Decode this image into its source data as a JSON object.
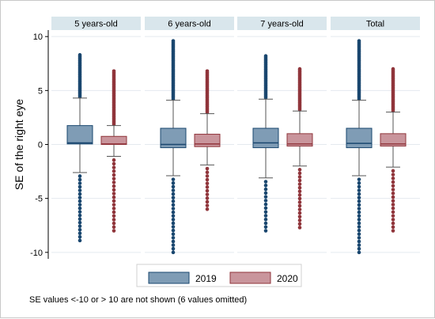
{
  "chart_data": {
    "type": "boxplot",
    "ylabel": "SE of the right eye",
    "ylim": [
      -10.6,
      10.6
    ],
    "yticks": [
      -10,
      -5,
      0,
      5,
      10
    ],
    "ytick_labels": [
      "-10",
      "-5",
      "0",
      "5",
      "10"
    ],
    "panels": [
      {
        "title": "5 years-old",
        "boxes": [
          {
            "series": "2019",
            "whisker_low": -2.6,
            "q1": 0.05,
            "median": 0.15,
            "q3": 1.75,
            "whisker_high": 4.3,
            "outliers_low_min": -8.9,
            "outliers_high_max": 8.3
          },
          {
            "series": "2020",
            "whisker_low": -1.1,
            "q1": 0.0,
            "median": 0.05,
            "q3": 0.75,
            "whisker_high": 1.75,
            "outliers_low_min": -8.0,
            "outliers_high_max": 6.8
          }
        ]
      },
      {
        "title": "6 years-old",
        "boxes": [
          {
            "series": "2019",
            "whisker_low": -2.9,
            "q1": -0.3,
            "median": 0.0,
            "q3": 1.5,
            "whisker_high": 4.1,
            "outliers_low_min": -10.0,
            "outliers_high_max": 9.6
          },
          {
            "series": "2020",
            "whisker_low": -1.9,
            "q1": -0.2,
            "median": 0.05,
            "q3": 0.95,
            "whisker_high": 2.85,
            "outliers_low_min": -6.0,
            "outliers_high_max": 6.8
          }
        ]
      },
      {
        "title": "7 years-old",
        "boxes": [
          {
            "series": "2019",
            "whisker_low": -3.1,
            "q1": -0.3,
            "median": 0.15,
            "q3": 1.5,
            "whisker_high": 4.2,
            "outliers_low_min": -8.0,
            "outliers_high_max": 8.2
          },
          {
            "series": "2020",
            "whisker_low": -2.0,
            "q1": -0.15,
            "median": 0.05,
            "q3": 1.0,
            "whisker_high": 3.1,
            "outliers_low_min": -7.7,
            "outliers_high_max": 7.0
          }
        ]
      },
      {
        "title": "Total",
        "boxes": [
          {
            "series": "2019",
            "whisker_low": -2.9,
            "q1": -0.3,
            "median": 0.1,
            "q3": 1.5,
            "whisker_high": 4.1,
            "outliers_low_min": -10.0,
            "outliers_high_max": 9.6
          },
          {
            "series": "2020",
            "whisker_low": -2.1,
            "q1": -0.15,
            "median": 0.05,
            "q3": 1.0,
            "whisker_high": 3.0,
            "outliers_low_min": -8.0,
            "outliers_high_max": 7.0
          }
        ]
      }
    ],
    "series": [
      {
        "name": "2019",
        "fill": "#7f9cb5",
        "stroke": "#1a476f"
      },
      {
        "name": "2020",
        "fill": "#c9959c",
        "stroke": "#90353b"
      }
    ],
    "legend_position": "bottom",
    "grid": true,
    "note": "SE values <-10 or > 10 are not shown (6 values omitted)"
  },
  "colors": {
    "panel_header_bg": "#d9e6ec",
    "grid": "#e4eaef",
    "axis": "#000000"
  }
}
